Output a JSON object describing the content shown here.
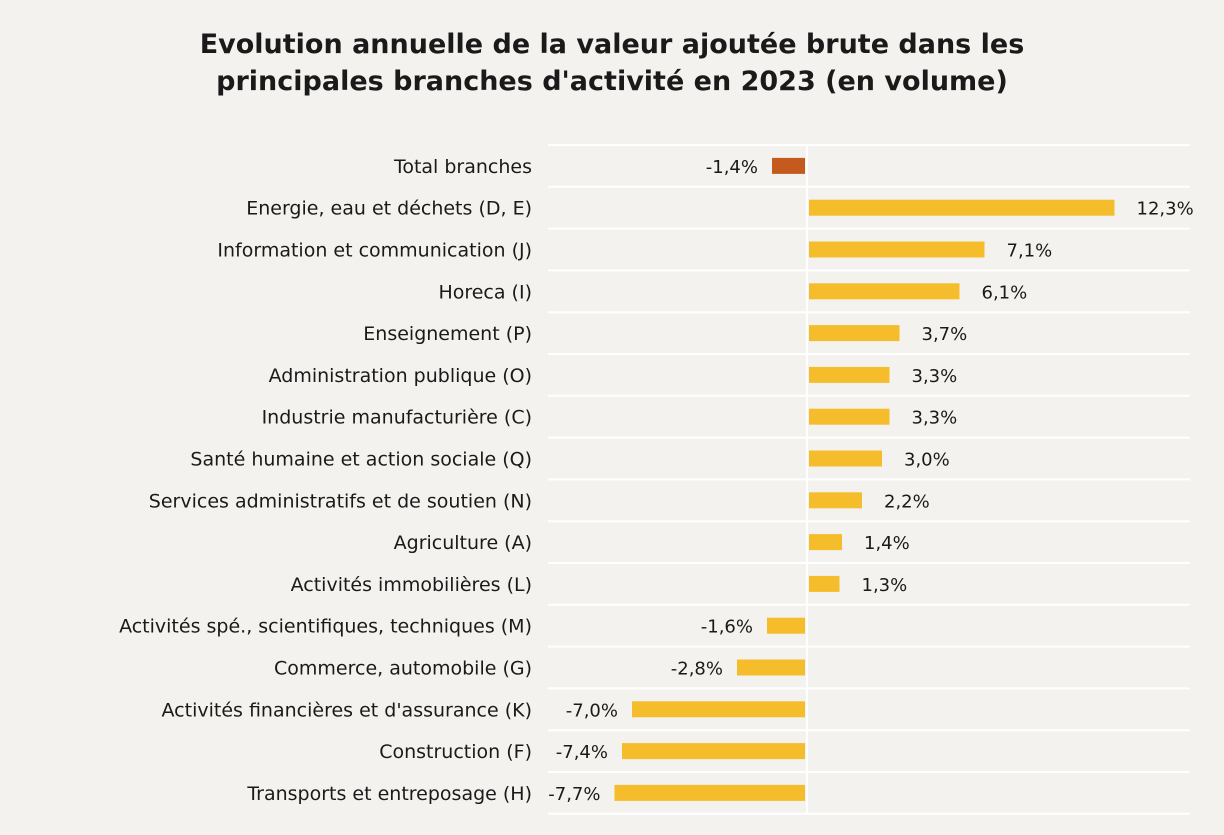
{
  "chart_data": {
    "type": "bar",
    "orientation": "horizontal",
    "title": "Evolution annuelle de la valeur ajoutée brute dans les\nprincipales branches d'activité en 2023 (en volume)",
    "xlabel": "",
    "ylabel": "",
    "xlim": [
      -8,
      13
    ],
    "grid": "horizontal separators",
    "legend": "none",
    "categories": [
      "Total branches",
      "Energie, eau et déchets (D, E)",
      "Information et communication (J)",
      "Horeca (I)",
      "Enseignement (P)",
      "Administration publique (O)",
      "Industrie manufacturière (C)",
      "Santé humaine et action sociale (Q)",
      "Services administratifs et de soutien (N)",
      "Agriculture (A)",
      "Activités immobilières (L)",
      "Activités spé., scientifiques, techniques (M)",
      "Commerce, automobile (G)",
      "Activités financières et d'assurance (K)",
      "Construction (F)",
      "Transports et entreposage (H)"
    ],
    "values": [
      -1.4,
      12.3,
      7.1,
      6.1,
      3.7,
      3.3,
      3.3,
      3.0,
      2.2,
      1.4,
      1.3,
      -1.6,
      -2.8,
      -7.0,
      -7.4,
      -7.7
    ],
    "data_labels": [
      "-1,4%",
      "12,3%",
      "7,1%",
      "6,1%",
      "3,7%",
      "3,3%",
      "3,3%",
      "3,0%",
      "2,2%",
      "1,4%",
      "1,3%",
      "-1,6%",
      "-2,8%",
      "-7,0%",
      "-7,4%",
      "-7,7%"
    ],
    "colors": {
      "highlight": "#c55a1e",
      "default": "#f5bd2b",
      "highlight_categories": [
        "Total branches"
      ],
      "gridline": "#ffffff"
    }
  }
}
